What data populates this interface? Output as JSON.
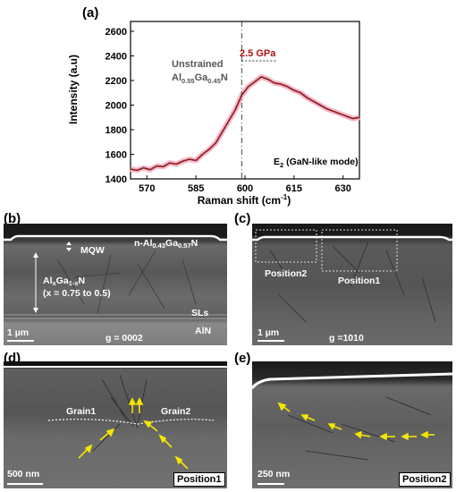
{
  "figure": {
    "panel_labels": [
      "(a)",
      "(b)",
      "(c)",
      "(d)",
      "(e)"
    ]
  },
  "chart_data": {
    "type": "line",
    "xlabel": "Raman shift (cm",
    "xlabel_sup": "-1",
    "xlabel_end": ")",
    "ylabel": "Intensity (a.u)",
    "xlim": [
      565,
      635
    ],
    "ylim": [
      1400,
      2680
    ],
    "xticks": [
      570,
      585,
      600,
      615,
      630
    ],
    "yticks": [
      1400,
      1600,
      1800,
      2000,
      2200,
      2400,
      2600
    ],
    "vline_x": 599,
    "annotations": {
      "unstrained_line1": "Unstrained",
      "unstrained_al": "Al",
      "unstrained_al_sub": "0.55",
      "unstrained_ga": "Ga",
      "unstrained_ga_sub": "0.45",
      "unstrained_n": "N",
      "shift_label": "2.5 GPa",
      "mode_e": "E",
      "mode_sub": "2",
      "mode_rest": " (GaN-like mode)"
    },
    "series": [
      {
        "color": "#8b1a1a",
        "x": [
          565,
          567,
          569,
          571,
          573,
          575,
          577,
          579,
          581,
          583,
          585,
          587,
          589,
          591,
          593,
          595,
          597,
          599,
          601,
          603,
          605,
          607,
          609,
          611,
          613,
          615,
          617,
          619,
          621,
          623,
          625,
          627,
          629,
          631,
          633,
          635
        ],
        "y": [
          1480,
          1470,
          1490,
          1475,
          1505,
          1500,
          1530,
          1520,
          1545,
          1560,
          1550,
          1600,
          1640,
          1690,
          1780,
          1870,
          1960,
          2080,
          2150,
          2190,
          2230,
          2210,
          2180,
          2170,
          2150,
          2120,
          2100,
          2060,
          2030,
          2000,
          1970,
          1950,
          1930,
          1910,
          1890,
          1900
        ]
      }
    ]
  },
  "panel_b": {
    "mqw": "MQW",
    "top_layer_pre": "n-Al",
    "top_layer_sub1": "0.43",
    "top_layer_mid": "Ga",
    "top_layer_sub2": "0.57",
    "top_layer_end": "N",
    "grad_pre": "Al",
    "grad_sub1": "x",
    "grad_mid": "Ga",
    "grad_sub2": "1-x",
    "grad_end": "N",
    "grad_range": "(x = 0.75 to 0.5)",
    "sls": "SLs",
    "aln": "AlN",
    "scale": "1 µm",
    "g": "g = 0002"
  },
  "panel_c": {
    "position2": "Position2",
    "position1": "Position1",
    "scale": "1 µm",
    "g": "g =1010"
  },
  "panel_d": {
    "grain1": "Grain1",
    "grain2": "Grain2",
    "scale": "500 nm",
    "position": "Position1"
  },
  "panel_e": {
    "scale": "250 nm",
    "position": "Position2"
  }
}
